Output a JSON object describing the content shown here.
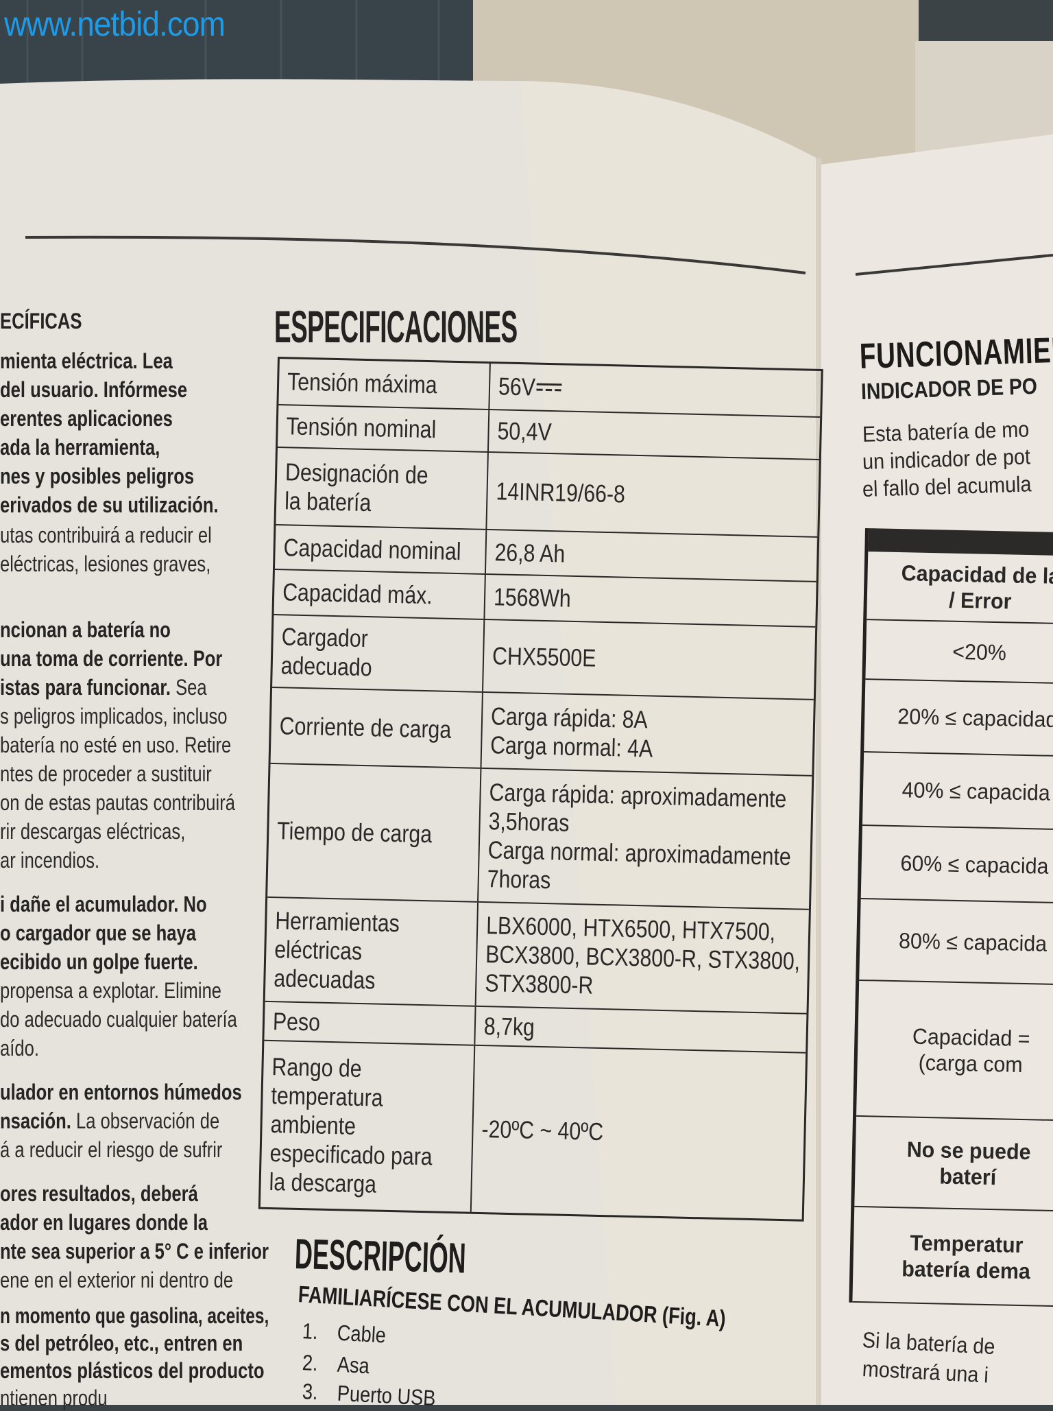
{
  "watermark": "www.netbid.com",
  "left_column": {
    "lines": [
      {
        "b": "ECÍFICAS",
        "r": ""
      },
      {
        "b": "mienta eléctrica. Lea",
        "r": ""
      },
      {
        "b": "del usuario. Infórmese",
        "r": ""
      },
      {
        "b": "erentes aplicaciones",
        "r": ""
      },
      {
        "b": "ada la herramienta,",
        "r": ""
      },
      {
        "b": "nes y posibles peligros",
        "r": ""
      },
      {
        "b": "erivados de su utilización.",
        "r": ""
      },
      {
        "b": "",
        "r": "utas contribuirá a reducir el"
      },
      {
        "b": "",
        "r": "eléctricas, lesiones graves,"
      },
      {
        "b": "ncionan a batería no",
        "r": ""
      },
      {
        "b": "una toma de corriente. Por",
        "r": ""
      },
      {
        "b": "istas para funcionar.",
        "r": " Sea"
      },
      {
        "b": "",
        "r": "s peligros implicados, incluso"
      },
      {
        "b": "",
        "r": "batería no esté en uso. Retire"
      },
      {
        "b": "",
        "r": "ntes de proceder a sustituir"
      },
      {
        "b": "",
        "r": "on de estas pautas contribuirá"
      },
      {
        "b": "",
        "r": "rir descargas eléctricas,"
      },
      {
        "b": "",
        "r": "ar incendios."
      },
      {
        "b": "i dañe el acumulador. No",
        "r": ""
      },
      {
        "b": "o cargador que se haya",
        "r": ""
      },
      {
        "b": "ecibido un golpe fuerte.",
        "r": ""
      },
      {
        "b": "",
        "r": "propensa a explotar. Elimine"
      },
      {
        "b": "",
        "r": "do adecuado cualquier batería"
      },
      {
        "b": "",
        "r": "aído."
      },
      {
        "b": "ulador en entornos húmedos",
        "r": ""
      },
      {
        "b": "nsación.",
        "r": " La observación de"
      },
      {
        "b": "",
        "r": "á a reducir el riesgo de sufrir"
      },
      {
        "b": "ores resultados, deberá",
        "r": ""
      },
      {
        "b": "ador en lugares donde la",
        "r": ""
      },
      {
        "b": "nte sea superior a 5° C e inferior",
        "r": ""
      },
      {
        "b": "",
        "r": "ene en el exterior ni dentro de"
      },
      {
        "b": "n momento que gasolina, aceites,",
        "r": ""
      },
      {
        "b": "s del petróleo, etc., entren en",
        "r": ""
      },
      {
        "b": "ementos plásticos del producto",
        "r": ""
      },
      {
        "b": "",
        "r": "ntienen produ"
      }
    ]
  },
  "specifications": {
    "title": "ESPECIFICACIONES",
    "rows": [
      {
        "label": "Tensión máxima",
        "value": "56V",
        "value_icon": "dc-voltage-symbol"
      },
      {
        "label": "Tensión nominal",
        "value": "50,4V"
      },
      {
        "label": "Designación de la batería",
        "value": "14INR19/66-8"
      },
      {
        "label": "Capacidad nominal",
        "value": "26,8 Ah"
      },
      {
        "label": "Capacidad máx.",
        "value": "1568Wh"
      },
      {
        "label": "Cargador adecuado",
        "value": "CHX5500E"
      },
      {
        "label": "Corriente de carga",
        "value": "Carga rápida: 8A\nCarga normal: 4A"
      },
      {
        "label": "Tiempo de carga",
        "value": "Carga rápida: aproximadamente\n3,5horas\nCarga normal: aproximadamente\n7horas"
      },
      {
        "label": "Herramientas\neléctricas\nadecuadas",
        "value": "LBX6000, HTX6500, HTX7500,\nBCX3800, BCX3800-R, STX3800,\nSTX3800-R"
      },
      {
        "label": "Peso",
        "value": "8,7kg"
      },
      {
        "label": "Rango de\ntemperatura\nambiente\nespecificado para\nla descarga",
        "value": "-20ºC ~ 40ºC"
      }
    ]
  },
  "description": {
    "title": "DESCRIPCIÓN",
    "subtitle": "FAMILIARÍCESE CON EL ACUMULADOR (Fig. A)",
    "items": [
      {
        "num": "1.",
        "label": "Cable"
      },
      {
        "num": "2.",
        "label": "Asa"
      },
      {
        "num": "3.",
        "label": "Puerto USB"
      }
    ]
  },
  "right_page": {
    "title": "FUNCIONAMIEN",
    "subtitle": "INDICADOR DE PO",
    "paragraph": [
      "Esta batería de mo",
      "un indicador de pot",
      "el fallo del acumula"
    ],
    "table_rows": [
      {
        "text": "Capacidad de la\n/ Error",
        "bold": true
      },
      {
        "text": "<20%",
        "bold": false
      },
      {
        "text": "20% ≤ capacidad",
        "bold": false
      },
      {
        "text": "40% ≤ capacida",
        "bold": false
      },
      {
        "text": "60% ≤ capacida",
        "bold": false
      },
      {
        "text": "80% ≤ capacida",
        "bold": false
      },
      {
        "text": "Capacidad =\n(carga com",
        "bold": false
      },
      {
        "text": "No se puede\nbaterí",
        "bold": true
      },
      {
        "text": "Temperatur\nbatería dema",
        "bold": true
      }
    ],
    "footer": [
      "Si la batería de",
      "mostrará una i"
    ]
  },
  "colors": {
    "watermark": "#1e9be8",
    "paper": "#e7e4de",
    "ink": "#2a2826"
  }
}
